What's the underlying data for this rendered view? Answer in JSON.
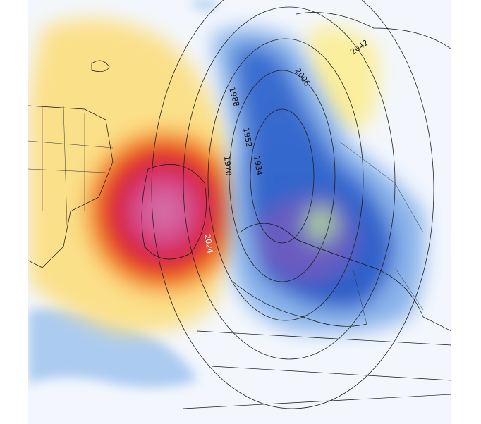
{
  "map": {
    "contour_labels": [
      "2042",
      "2006",
      "1988",
      "1952",
      "1970",
      "1934",
      "2024"
    ]
  }
}
